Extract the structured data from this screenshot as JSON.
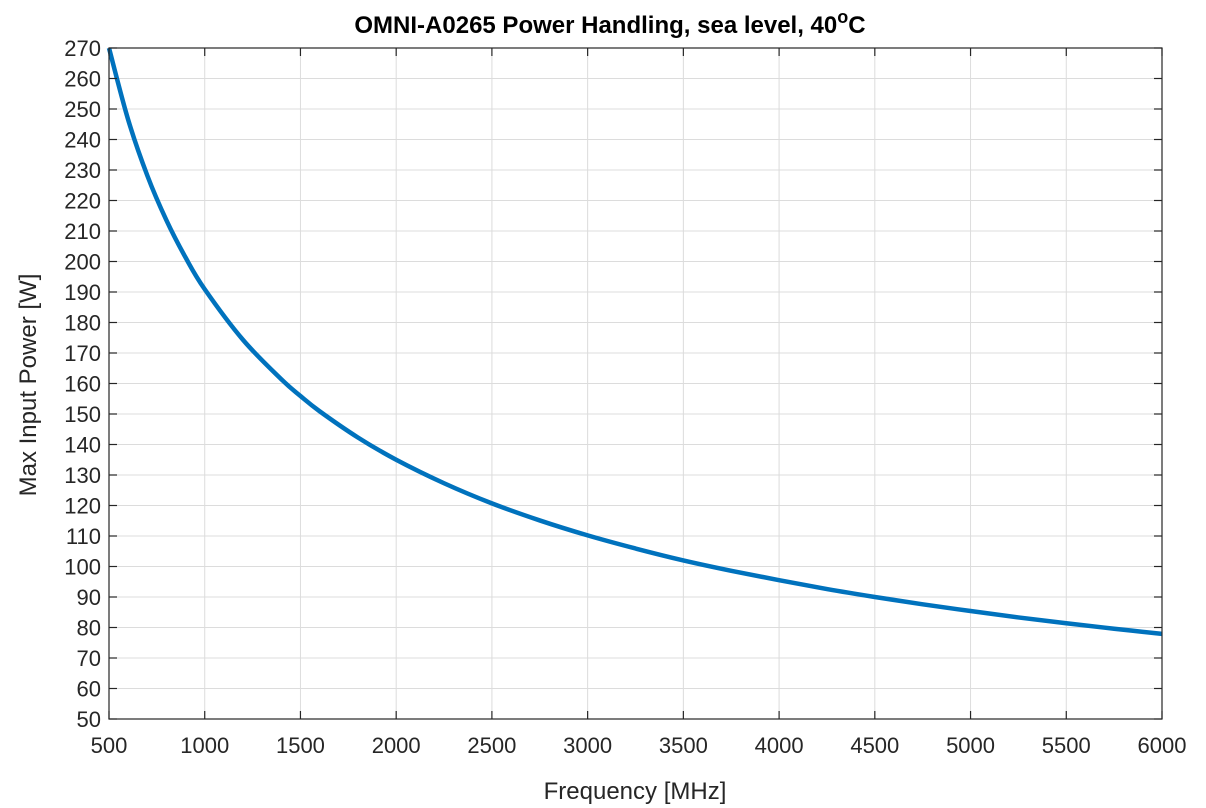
{
  "chart_data": {
    "type": "line",
    "title": "OMNI-A0265 Power Handling, sea level, 40",
    "title_superscript": "o",
    "title_suffix": "C",
    "xlabel": "Frequency [MHz]",
    "ylabel": "Max Input Power [W]",
    "xlim": [
      500,
      6000
    ],
    "ylim": [
      50,
      270
    ],
    "xticks": [
      500,
      1000,
      1500,
      2000,
      2500,
      3000,
      3500,
      4000,
      4500,
      5000,
      5500,
      6000
    ],
    "yticks": [
      50,
      60,
      70,
      80,
      90,
      100,
      110,
      120,
      130,
      140,
      150,
      160,
      170,
      180,
      190,
      200,
      210,
      220,
      230,
      240,
      250,
      260,
      270
    ],
    "grid": true,
    "line_color": "#0072BD",
    "series": [
      {
        "x": [
          500,
          600,
          700,
          800,
          900,
          1000,
          1200,
          1400,
          1500,
          1600,
          1800,
          2000,
          2250,
          2500,
          2750,
          3000,
          3250,
          3500,
          3750,
          4000,
          4250,
          4500,
          4750,
          5000,
          5250,
          5500,
          5750,
          6000
        ],
        "values": [
          270,
          246.5,
          228.2,
          213.5,
          201.3,
          190.9,
          174.3,
          161.4,
          155.9,
          150.9,
          142.3,
          135.0,
          127.3,
          120.7,
          115.1,
          110.2,
          105.9,
          102.0,
          98.6,
          95.5,
          92.6,
          90.0,
          87.6,
          85.4,
          83.3,
          81.4,
          79.6,
          77.9
        ]
      }
    ]
  }
}
